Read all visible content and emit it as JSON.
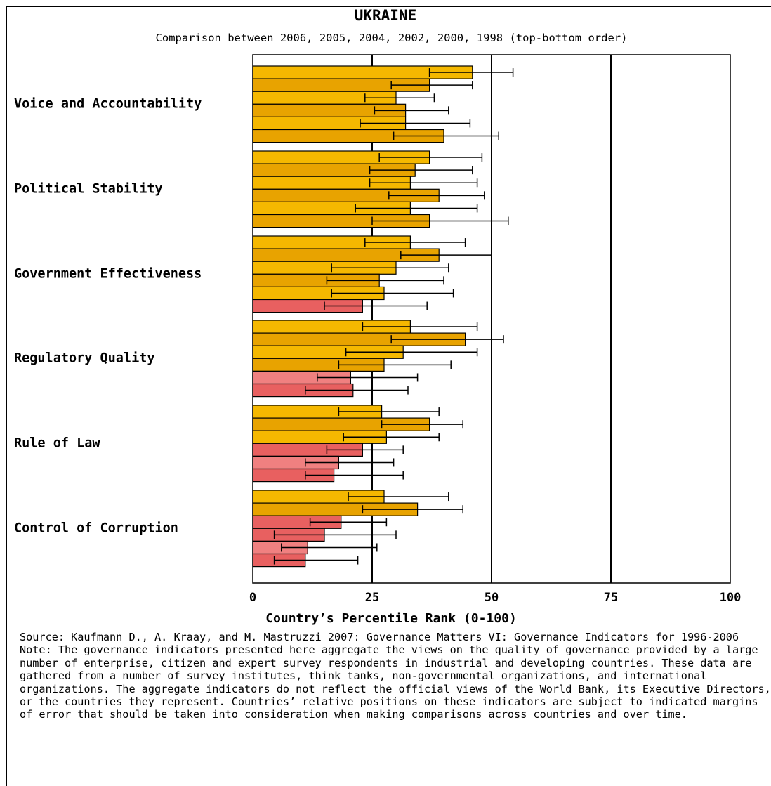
{
  "chart_data": {
    "type": "bar",
    "orientation": "horizontal",
    "title": "UKRAINE",
    "subtitle": "Comparison between 2006, 2005, 2004, 2002, 2000, 1998 (top-bottom order)",
    "xlabel": "Country’s Percentile Rank (0-100)",
    "xlim": [
      0,
      100
    ],
    "xticks": [
      "0",
      "25",
      "50",
      "75",
      "100"
    ],
    "years": [
      "2006",
      "2005",
      "2004",
      "2002",
      "2000",
      "1998"
    ],
    "categories": [
      {
        "name": "Voice and Accountability",
        "values": [
          46,
          37,
          30,
          32,
          32,
          40
        ],
        "error": [
          [
            37,
            54.5
          ],
          [
            29,
            46
          ],
          [
            23.5,
            38
          ],
          [
            25.5,
            41
          ],
          [
            22.5,
            45.5
          ],
          [
            29.5,
            51.5
          ]
        ],
        "colors": [
          "#F5B800",
          "#E8A300",
          "#F5B800",
          "#E8A300",
          "#F5B800",
          "#E8A300"
        ]
      },
      {
        "name": "Political Stability",
        "values": [
          37,
          34,
          33,
          39,
          33,
          37
        ],
        "error": [
          [
            26.5,
            48
          ],
          [
            24.5,
            46
          ],
          [
            24.5,
            47
          ],
          [
            28.5,
            48.5
          ],
          [
            21.5,
            47
          ],
          [
            25,
            53.5
          ]
        ],
        "colors": [
          "#F5B800",
          "#E8A300",
          "#F5B800",
          "#E8A300",
          "#F5B800",
          "#E8A300"
        ]
      },
      {
        "name": "Government Effectiveness",
        "values": [
          33,
          39,
          30,
          26.5,
          27.5,
          23
        ],
        "error": [
          [
            23.5,
            44.5
          ],
          [
            31,
            50
          ],
          [
            16.5,
            41
          ],
          [
            15.5,
            40
          ],
          [
            16.5,
            42
          ],
          [
            15,
            36.5
          ]
        ],
        "colors": [
          "#F5B800",
          "#E8A300",
          "#F5B800",
          "#E8A300",
          "#F5B800",
          "#E86060"
        ]
      },
      {
        "name": "Regulatory Quality",
        "values": [
          33,
          44.5,
          31.5,
          27.5,
          20.5,
          21
        ],
        "error": [
          [
            23,
            47
          ],
          [
            29,
            52.5
          ],
          [
            19.5,
            47
          ],
          [
            18,
            41.5
          ],
          [
            13.5,
            34.5
          ],
          [
            11,
            32.5
          ]
        ],
        "colors": [
          "#F5B800",
          "#E8A300",
          "#F5B800",
          "#E8A300",
          "#F08080",
          "#E86060"
        ]
      },
      {
        "name": "Rule of Law",
        "values": [
          27,
          37,
          28,
          23,
          18,
          17
        ],
        "error": [
          [
            18,
            39
          ],
          [
            27,
            44
          ],
          [
            19,
            39
          ],
          [
            15.5,
            31.5
          ],
          [
            11,
            29.5
          ],
          [
            11,
            31.5
          ]
        ],
        "colors": [
          "#F5B800",
          "#E8A300",
          "#F5B800",
          "#E86060",
          "#F08080",
          "#E86060"
        ]
      },
      {
        "name": "Control of Corruption",
        "values": [
          27.5,
          34.5,
          18.5,
          15,
          11.5,
          11
        ],
        "error": [
          [
            20,
            41
          ],
          [
            23,
            44
          ],
          [
            12,
            28
          ],
          [
            4.5,
            30
          ],
          [
            6,
            26
          ],
          [
            4.5,
            22
          ]
        ],
        "colors": [
          "#F5B800",
          "#E8A300",
          "#E86060",
          "#E86060",
          "#F08080",
          "#E86060"
        ]
      }
    ],
    "grid": "vertical lines at 25, 50, 75"
  },
  "footer": {
    "source": "Source: Kaufmann D., A. Kraay, and M. Mastruzzi 2007: Governance Matters VI: Governance Indicators for 1996-2006",
    "note": "Note: The governance indicators presented here aggregate the views on the quality of governance provided by a large number of enterprise, citizen and expert survey respondents in industrial and developing countries. These data are gathered from a number of survey institutes, think tanks, non-governmental organizations, and international organizations. The aggregate indicators do not reflect the official views of the World Bank, its Executive Directors, or the countries they represent. Countries’ relative positions on these indicators are subject to indicated margins of error that should be taken into consideration when making comparisons across countries and over time."
  }
}
